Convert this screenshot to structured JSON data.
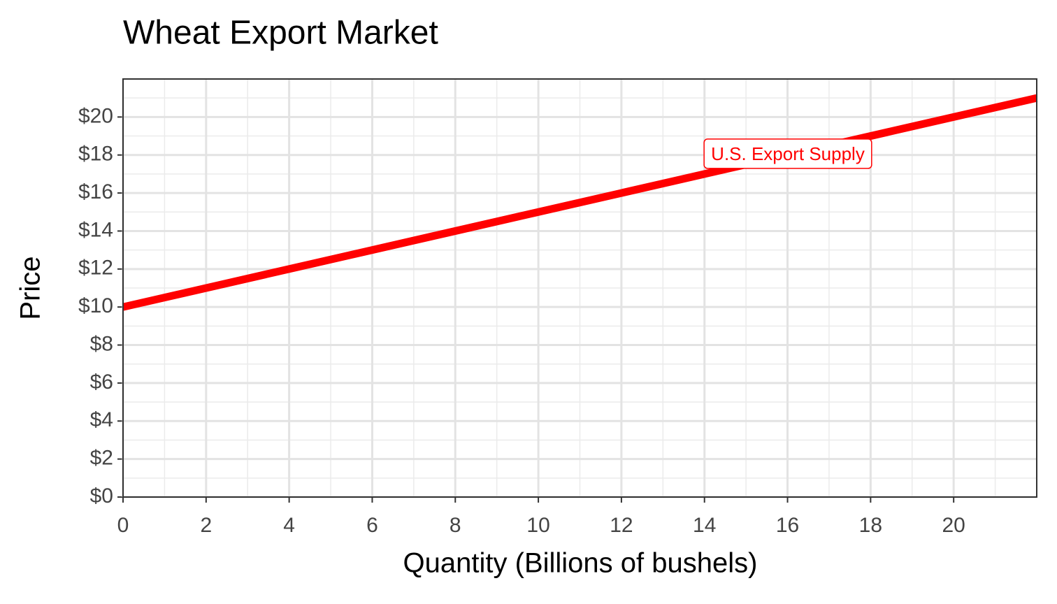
{
  "chart_data": {
    "type": "line",
    "title": "Wheat Export Market",
    "x_label": "Quantity (Billions of bushels)",
    "y_label": "Price",
    "x": [
      0,
      22
    ],
    "series": [
      {
        "name": "U.S. Export Supply",
        "color": "#ff0000",
        "values": [
          10,
          21
        ]
      }
    ],
    "annotations": [
      {
        "text": "U.S. Export Supply"
      }
    ],
    "xlim": [
      0,
      22
    ],
    "ylim": [
      0,
      22
    ],
    "xticks": [
      0,
      2,
      4,
      6,
      8,
      10,
      12,
      14,
      16,
      18,
      20
    ],
    "yticks": [
      {
        "value": 0,
        "label": "$0"
      },
      {
        "value": 2,
        "label": "$2"
      },
      {
        "value": 4,
        "label": "$4"
      },
      {
        "value": 6,
        "label": "$6"
      },
      {
        "value": 8,
        "label": "$8"
      },
      {
        "value": 10,
        "label": "$10"
      },
      {
        "value": 12,
        "label": "$12"
      },
      {
        "value": 14,
        "label": "$14"
      },
      {
        "value": 16,
        "label": "$16"
      },
      {
        "value": 18,
        "label": "$18"
      },
      {
        "value": 20,
        "label": "$20"
      }
    ],
    "grid": true,
    "minor_grid": true
  }
}
